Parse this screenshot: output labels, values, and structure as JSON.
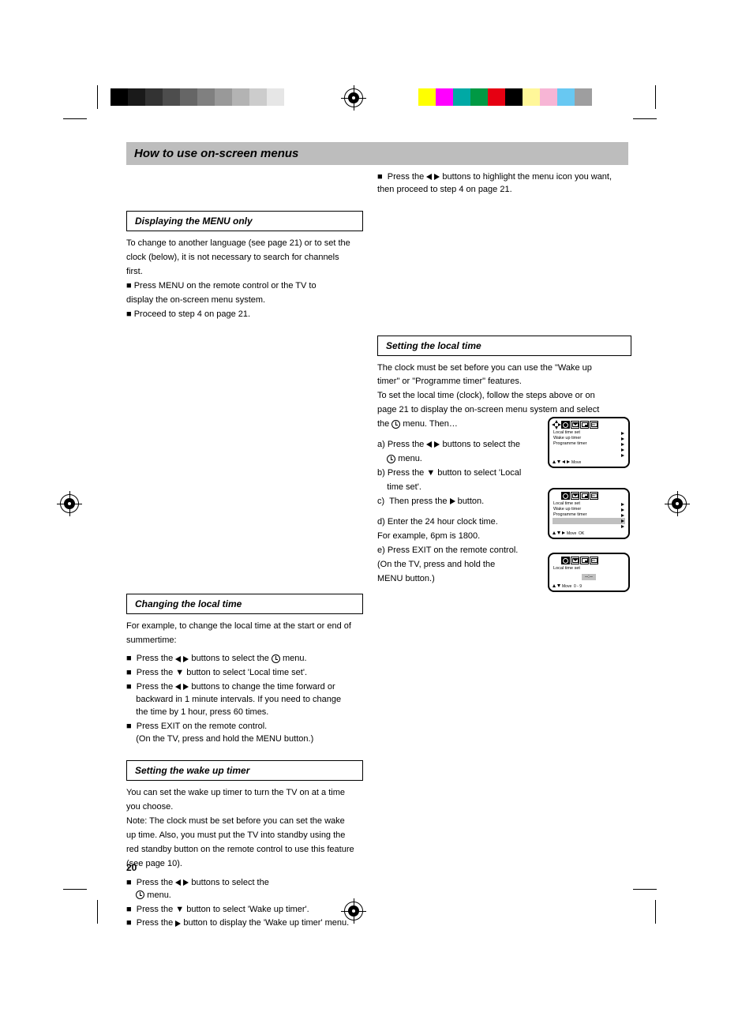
{
  "page_number": "20",
  "heading": "How to use on-screen menus",
  "intro_right": "■  Press the ◄ ► buttons to highlight the menu icon you want, then proceed to step 4 on page 21.",
  "section_menu_only": {
    "title": "Displaying the MENU only",
    "body": [
      "To change to another language (see page 21) or to set the",
      "clock (below), it is not necessary to search for channels",
      "first.",
      "■  Press MENU on the remote control or the TV to",
      "    display the on-screen menu system.",
      "■  Proceed to step 4 on page 21."
    ]
  },
  "section_local_time": {
    "title": "Setting the local time",
    "body": [
      "The clock must be set before you can use the \"Wake up",
      "timer\" or \"Programme timer\" features.",
      "To set the local time (clock), follow the steps above or on",
      "page 21 to display the on-screen menu system and select",
      "the ",
      " menu. Then…"
    ]
  },
  "section_change_time": {
    "title": "Changing the local time",
    "body1": [
      "For example, to change the local time at the start or end of",
      "summertime:"
    ],
    "steps": [
      "■  Press the ◄ ► buttons to select the ",
      " menu.",
      "■  Press the ▼ button to select 'Local time set'.",
      "■  Press the ◄ ► buttons to change the time forward or",
      "    backward in 1 minute intervals. If you need to change",
      "    the time by 1 hour, press 60 times.",
      "■  Press EXIT on the remote control.",
      "    (On the TV, press and hold the MENU button.)"
    ]
  },
  "section_wake_up": {
    "title": "Setting the wake up timer",
    "body": [
      "You can set the wake up timer to turn the TV on at a time",
      "you choose.",
      "Note: The clock must be set before you can set the wake",
      "up time. Also, you must put the TV into standby using the",
      "red standby button on the remote control to use this feature",
      "(see page 10)."
    ],
    "steps": [
      "■  Press the ◄ ► buttons to select the ",
      " menu.",
      "■  Press the ▼ button to select 'Wake up timer'.",
      "■  Press the ► button to display the 'Wake up timer' menu."
    ]
  },
  "right_steps_top": [
    "a) Press the ◄ ► buttons to select the",
    "     menu.",
    "b) Press the ▼ button to select 'Local",
    "    time set'.",
    "c)  Then press the ► button."
  ],
  "right_steps_bottom": [
    "d) Enter the 24 hour clock time.",
    "    For example, 6pm is 1800.",
    "e) Press EXIT on the remote control.",
    "    (On the TV, press and hold the",
    "    MENU button.)"
  ],
  "osd_common": {
    "tab_labels": [
      "clock",
      "env",
      "pip",
      "PC"
    ],
    "nav_move": "Move"
  },
  "osd1": {
    "has_move_icon": true,
    "rows": [
      {
        "label": "Local time set",
        "arrow": true
      },
      {
        "label": "Wake up timer",
        "arrow": true
      },
      {
        "label": "Programme timer",
        "arrow": true
      },
      {
        "label": "",
        "arrow": true
      },
      {
        "label": "",
        "arrow": true
      }
    ]
  },
  "osd2": {
    "has_move_icon": false,
    "rows": [
      {
        "label": "Local time set",
        "arrow": true,
        "sel": false
      },
      {
        "label": "Wake up timer",
        "arrow": true,
        "sel": false
      },
      {
        "label": "Programme timer",
        "arrow": true,
        "sel": false
      },
      {
        "label": "",
        "arrow": true,
        "sel": true
      },
      {
        "label": "",
        "arrow": true,
        "sel": false
      }
    ],
    "nav_extra": "OK"
  },
  "osd3": {
    "has_move_icon": false,
    "title_row": "Local time set",
    "time_value": "--:--",
    "nav_extra": "0 - 9"
  },
  "swatches_gray": [
    "#000000",
    "#1a1a1a",
    "#333333",
    "#4d4d4d",
    "#666666",
    "#808080",
    "#999999",
    "#b3b3b3",
    "#cccccc",
    "#e6e6e6",
    "#ffffff"
  ],
  "swatches_color": [
    "#ffff00",
    "#ff00ff",
    "#00a9a5",
    "#009944",
    "#e60012",
    "#000000",
    "#fff799",
    "#f7b5d5",
    "#68c8f2",
    "#9e9e9f"
  ]
}
